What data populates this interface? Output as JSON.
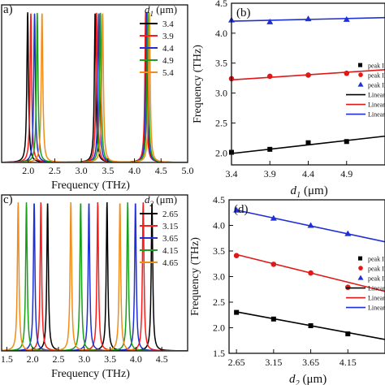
{
  "chart_data": [
    {
      "panel": "a",
      "type": "line",
      "panel_label": "a)",
      "xlabel": "Frequency (THz)",
      "ylabel": "",
      "xlim": [
        1.5,
        5.0
      ],
      "ylim": [
        0,
        1.05
      ],
      "xticks": [
        "2.0",
        "2.5",
        "3.0",
        "3.5",
        "4.0",
        "4.5",
        "5.0"
      ],
      "legend_title": "d1 (μm)",
      "legend_title_main": "d",
      "legend_title_sub": "1",
      "legend_title_unit": " (μm)",
      "legend_placement": "top-right",
      "series": [
        {
          "name": "3.4",
          "color": "#000000",
          "peaks": [
            1.99,
            3.26,
            4.22
          ]
        },
        {
          "name": "3.9",
          "color": "#ff1a1a",
          "peaks": [
            2.05,
            3.29,
            4.21
          ]
        },
        {
          "name": "4.4",
          "color": "#1f2fd6",
          "peaks": [
            2.12,
            3.33,
            4.23
          ]
        },
        {
          "name": "4.9",
          "color": "#18a018",
          "peaks": [
            2.17,
            3.36,
            4.25
          ]
        },
        {
          "name": "5.4",
          "color": "#f28c1a",
          "peaks": [
            2.26,
            3.4,
            4.28
          ]
        }
      ]
    },
    {
      "panel": "b",
      "type": "scatter",
      "panel_label": "(b)",
      "xlabel_main": "d",
      "xlabel_sub": "1",
      "xlabel_unit": " (μm)",
      "ylabel": "Frequency (THz)",
      "xlim": [
        3.4,
        5.4
      ],
      "ylim": [
        1.8,
        4.5
      ],
      "xticks": [
        "3.4",
        "3.9",
        "4.4",
        "4.9"
      ],
      "yticks": [
        "2.0",
        "2.5",
        "3.0",
        "3.5",
        "4.0",
        "4.5"
      ],
      "legend_placement": "right",
      "series": [
        {
          "name": "peak I",
          "marker": "square",
          "color": "#000000",
          "x": [
            3.4,
            3.9,
            4.4,
            4.9
          ],
          "y": [
            2.01,
            2.06,
            2.17,
            2.19
          ]
        },
        {
          "name": "peak II",
          "marker": "circle",
          "color": "#e01818",
          "x": [
            3.4,
            3.9,
            4.4,
            4.9
          ],
          "y": [
            3.24,
            3.28,
            3.3,
            3.33
          ]
        },
        {
          "name": "peak III",
          "marker": "triangle",
          "color": "#1f2fd6",
          "x": [
            3.4,
            3.9,
            4.4,
            4.9
          ],
          "y": [
            4.22,
            4.19,
            4.24,
            4.23
          ]
        }
      ],
      "fits": [
        {
          "name": "Linear",
          "color": "#000000",
          "x": [
            3.4,
            5.4
          ],
          "y": [
            1.99,
            2.28
          ]
        },
        {
          "name": "Linear",
          "color": "#e01818",
          "x": [
            3.4,
            5.4
          ],
          "y": [
            3.22,
            3.39
          ]
        },
        {
          "name": "Linear",
          "color": "#1f2fd6",
          "x": [
            3.4,
            5.4
          ],
          "y": [
            4.2,
            4.26
          ]
        }
      ]
    },
    {
      "panel": "c",
      "type": "line",
      "panel_label": "c)",
      "xlabel": "Frequency (THz)",
      "ylabel": "",
      "xlim": [
        1.4,
        5.0
      ],
      "ylim": [
        0,
        1.05
      ],
      "xticks": [
        "1.5",
        "2.0",
        "2.5",
        "3.0",
        "3.5",
        "4.0",
        "4.5"
      ],
      "legend_title": "d2 (μm)",
      "legend_title_main": "d",
      "legend_title_sub": "2",
      "legend_title_unit": " (μm)",
      "legend_placement": "top-right",
      "series": [
        {
          "name": "2.65",
          "color": "#000000",
          "peaks": [
            2.29,
            3.44,
            4.31
          ]
        },
        {
          "name": "3.15",
          "color": "#ff1a1a",
          "peaks": [
            2.16,
            3.26,
            4.14
          ]
        },
        {
          "name": "3.65",
          "color": "#1f2fd6",
          "peaks": [
            2.03,
            3.09,
            3.99
          ]
        },
        {
          "name": "4.15",
          "color": "#18a018",
          "peaks": [
            1.88,
            2.93,
            3.84
          ]
        },
        {
          "name": "4.65",
          "color": "#f28c1a",
          "peaks": [
            1.72,
            2.74,
            3.69
          ]
        }
      ]
    },
    {
      "panel": "d",
      "type": "scatter",
      "panel_label": "(d)",
      "xlabel_main": "d",
      "xlabel_sub": "2",
      "xlabel_unit": " (μm)",
      "ylabel": "Frequency (THz)",
      "xlim": [
        2.55,
        4.65
      ],
      "ylim": [
        1.5,
        4.5
      ],
      "xticks": [
        "2.65",
        "3.15",
        "3.65",
        "4.15"
      ],
      "yticks": [
        "1.5",
        "2.0",
        "2.5",
        "3.0",
        "3.5",
        "4.0",
        "4.5"
      ],
      "legend_placement": "right",
      "series": [
        {
          "name": "peak I",
          "marker": "square",
          "color": "#000000",
          "x": [
            2.65,
            3.15,
            3.65,
            4.15
          ],
          "y": [
            2.3,
            2.17,
            2.04,
            1.88
          ]
        },
        {
          "name": "peak II",
          "marker": "circle",
          "color": "#e01818",
          "x": [
            2.65,
            3.15,
            3.65,
            4.15
          ],
          "y": [
            3.41,
            3.24,
            3.07,
            2.79
          ]
        },
        {
          "name": "peak III",
          "marker": "triangle",
          "color": "#1f2fd6",
          "x": [
            2.65,
            3.15,
            3.65,
            4.15
          ],
          "y": [
            4.3,
            4.14,
            4.0,
            3.84
          ]
        }
      ],
      "fits": [
        {
          "name": "Linear",
          "color": "#000000",
          "x": [
            2.65,
            4.65
          ],
          "y": [
            2.31,
            1.77
          ]
        },
        {
          "name": "Linear",
          "color": "#e01818",
          "x": [
            2.65,
            4.65
          ],
          "y": [
            3.43,
            2.71
          ]
        },
        {
          "name": "Linear",
          "color": "#1f2fd6",
          "x": [
            2.65,
            4.65
          ],
          "y": [
            4.3,
            3.68
          ]
        }
      ]
    }
  ]
}
